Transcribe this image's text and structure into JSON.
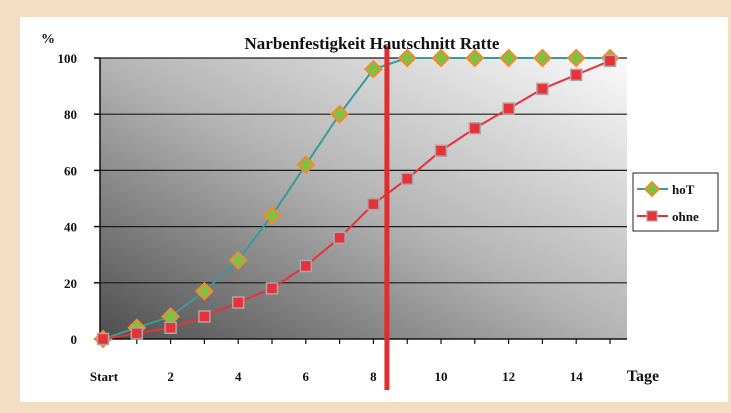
{
  "chart_data": {
    "type": "line",
    "title": "Narbenfestigkeit Hautschnitt Ratte",
    "ylabel": "%",
    "xlabel": "Tage",
    "xlim": [
      0,
      15
    ],
    "ylim": [
      0,
      100
    ],
    "xticks": [
      {
        "x": 0,
        "label": "Start"
      },
      {
        "x": 2,
        "label": "2"
      },
      {
        "x": 4,
        "label": "4"
      },
      {
        "x": 6,
        "label": "6"
      },
      {
        "x": 8,
        "label": "8"
      },
      {
        "x": 10,
        "label": "10"
      },
      {
        "x": 12,
        "label": "12"
      },
      {
        "x": 14,
        "label": "14"
      }
    ],
    "yticks": [
      {
        "y": 0,
        "label": "0"
      },
      {
        "y": 20,
        "label": "20"
      },
      {
        "y": 40,
        "label": "40"
      },
      {
        "y": 60,
        "label": "60"
      },
      {
        "y": 80,
        "label": "80"
      },
      {
        "y": 100,
        "label": "100"
      }
    ],
    "grid": true,
    "legend_position": "right",
    "x": [
      0,
      1,
      2,
      3,
      4,
      5,
      6,
      7,
      8,
      9,
      10,
      11,
      12,
      13,
      14,
      15
    ],
    "series": [
      {
        "name": "hoT",
        "marker": "diamond",
        "line_color": "#3a9a9a",
        "marker_fill": "#7fc241",
        "marker_stroke": "#f08a2e",
        "values": [
          0,
          4,
          8,
          17,
          28,
          44,
          62,
          80,
          96,
          100,
          100,
          100,
          100,
          100,
          100,
          100
        ]
      },
      {
        "name": "ohne",
        "marker": "square",
        "line_color": "#e8323a",
        "marker_fill": "#e8323a",
        "marker_stroke": "#a8a8a8",
        "values": [
          0,
          2,
          4,
          8,
          13,
          18,
          26,
          36,
          48,
          57,
          67,
          75,
          82,
          89,
          94,
          99
        ]
      }
    ],
    "annotations": [
      {
        "type": "vertical_line",
        "x": 8.4,
        "color": "#e02d2d"
      }
    ]
  }
}
